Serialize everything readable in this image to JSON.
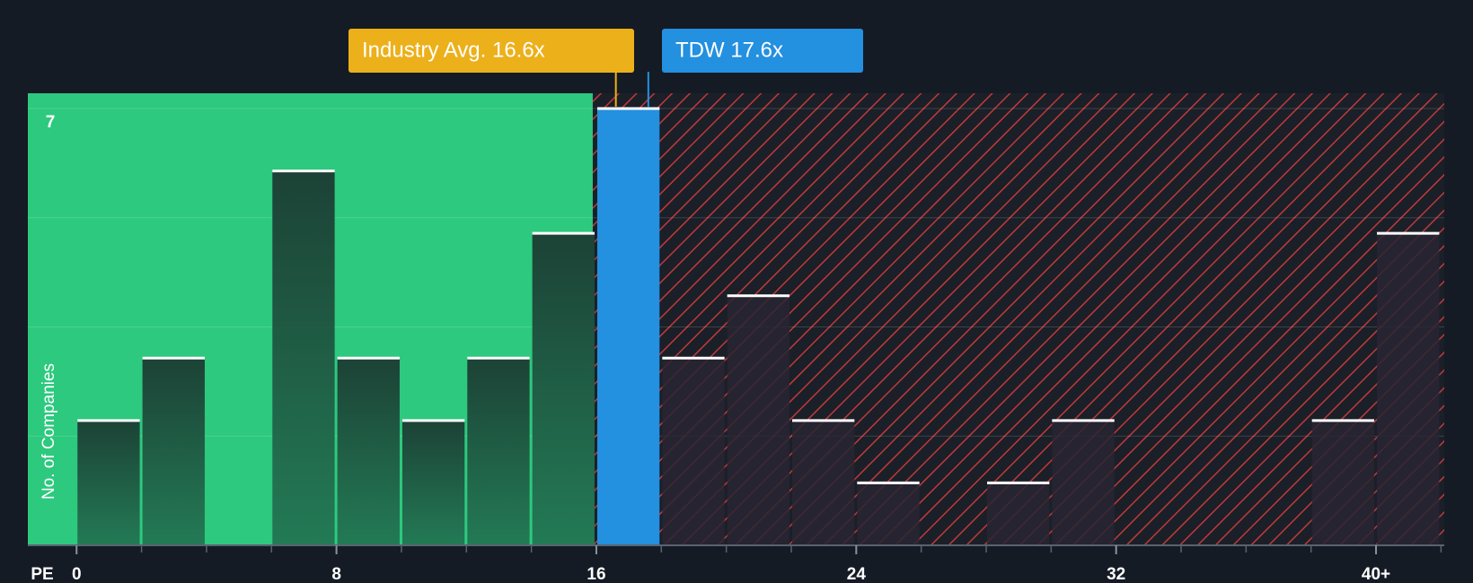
{
  "chart_data": {
    "type": "histogram",
    "x_label": "PE",
    "y_label": "No. of Companies",
    "bins": [
      0,
      2,
      4,
      6,
      8,
      10,
      12,
      14,
      16,
      18,
      20,
      22,
      24,
      26,
      28,
      30,
      32,
      34,
      36,
      38,
      40,
      42
    ],
    "values": [
      2,
      3,
      0,
      6,
      3,
      2,
      3,
      5,
      7,
      3,
      4,
      2,
      1,
      0,
      1,
      2,
      0,
      0,
      0,
      2,
      5
    ],
    "xlim": [
      -1.5,
      42.1
    ],
    "xticks": [
      0,
      8,
      16,
      24,
      32,
      {
        "value": 40,
        "label": "40+"
      }
    ],
    "ylim": [
      0,
      7
    ],
    "yticks": [
      7
    ],
    "grid_lines": [
      1.75,
      3.5,
      5.25,
      7
    ],
    "industry": {
      "label": "Industry Avg. 16.6x",
      "value": 16.6,
      "color": "#ecb01a"
    },
    "company": {
      "label": "TDW 17.6x",
      "value": 17.6,
      "color": "#2390e0"
    },
    "colors": {
      "below": "#2dc97e",
      "above_hatch": "#c0393b"
    }
  }
}
